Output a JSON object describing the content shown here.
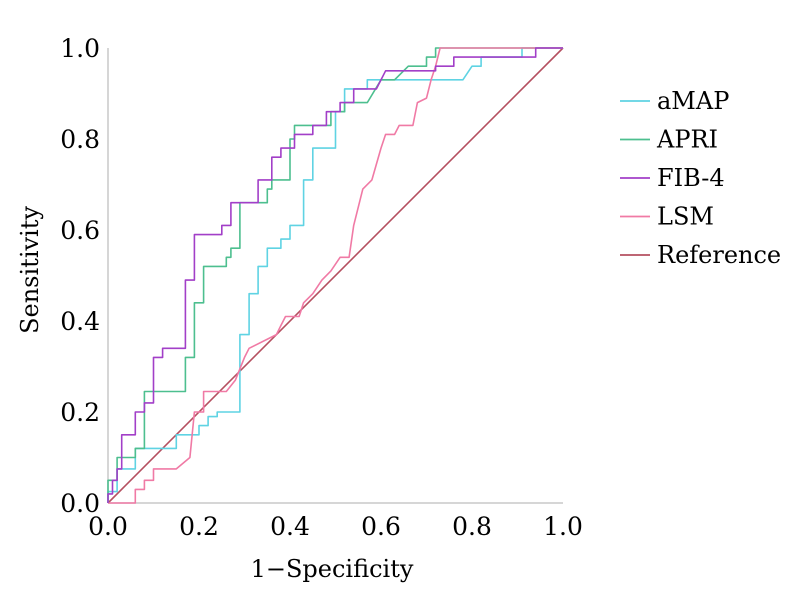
{
  "chart_data": {
    "type": "line",
    "title": "",
    "xlabel": "1−Specificity",
    "ylabel": "Sensitivity",
    "xlim": [
      0,
      1
    ],
    "ylim": [
      0,
      1
    ],
    "xticks": [
      "0.0",
      "0.2",
      "0.4",
      "0.6",
      "0.8",
      "1.0"
    ],
    "yticks": [
      "0.0",
      "0.2",
      "0.4",
      "0.6",
      "0.8",
      "1.0"
    ],
    "grid": false,
    "legend_position": "right",
    "series": [
      {
        "name": "aMAP",
        "color": "#5fd3e3",
        "points": [
          [
            0,
            0
          ],
          [
            0,
            0.025
          ],
          [
            0.02,
            0.025
          ],
          [
            0.02,
            0.075
          ],
          [
            0.06,
            0.075
          ],
          [
            0.06,
            0.12
          ],
          [
            0.15,
            0.12
          ],
          [
            0.15,
            0.15
          ],
          [
            0.2,
            0.15
          ],
          [
            0.2,
            0.17
          ],
          [
            0.22,
            0.17
          ],
          [
            0.22,
            0.19
          ],
          [
            0.24,
            0.19
          ],
          [
            0.24,
            0.2
          ],
          [
            0.29,
            0.2
          ],
          [
            0.29,
            0.37
          ],
          [
            0.31,
            0.37
          ],
          [
            0.31,
            0.46
          ],
          [
            0.33,
            0.46
          ],
          [
            0.33,
            0.52
          ],
          [
            0.35,
            0.52
          ],
          [
            0.35,
            0.56
          ],
          [
            0.38,
            0.56
          ],
          [
            0.38,
            0.58
          ],
          [
            0.4,
            0.58
          ],
          [
            0.4,
            0.61
          ],
          [
            0.43,
            0.61
          ],
          [
            0.43,
            0.71
          ],
          [
            0.45,
            0.71
          ],
          [
            0.45,
            0.78
          ],
          [
            0.5,
            0.78
          ],
          [
            0.5,
            0.86
          ],
          [
            0.52,
            0.86
          ],
          [
            0.52,
            0.91
          ],
          [
            0.57,
            0.91
          ],
          [
            0.57,
            0.93
          ],
          [
            0.63,
            0.93
          ],
          [
            0.78,
            0.93
          ],
          [
            0.8,
            0.96
          ],
          [
            0.82,
            0.96
          ],
          [
            0.82,
            0.98
          ],
          [
            0.91,
            0.98
          ],
          [
            0.91,
            1.0
          ],
          [
            1.0,
            1.0
          ]
        ]
      },
      {
        "name": "APRI",
        "color": "#4dbf8f",
        "points": [
          [
            0,
            0
          ],
          [
            0,
            0.05
          ],
          [
            0.02,
            0.05
          ],
          [
            0.02,
            0.1
          ],
          [
            0.06,
            0.1
          ],
          [
            0.06,
            0.12
          ],
          [
            0.08,
            0.12
          ],
          [
            0.08,
            0.245
          ],
          [
            0.17,
            0.245
          ],
          [
            0.17,
            0.32
          ],
          [
            0.19,
            0.32
          ],
          [
            0.19,
            0.44
          ],
          [
            0.21,
            0.44
          ],
          [
            0.21,
            0.52
          ],
          [
            0.26,
            0.52
          ],
          [
            0.26,
            0.54
          ],
          [
            0.27,
            0.54
          ],
          [
            0.27,
            0.56
          ],
          [
            0.29,
            0.56
          ],
          [
            0.29,
            0.66
          ],
          [
            0.35,
            0.66
          ],
          [
            0.35,
            0.69
          ],
          [
            0.36,
            0.69
          ],
          [
            0.36,
            0.71
          ],
          [
            0.4,
            0.71
          ],
          [
            0.4,
            0.8
          ],
          [
            0.41,
            0.8
          ],
          [
            0.41,
            0.83
          ],
          [
            0.49,
            0.83
          ],
          [
            0.49,
            0.86
          ],
          [
            0.52,
            0.86
          ],
          [
            0.52,
            0.88
          ],
          [
            0.57,
            0.88
          ],
          [
            0.6,
            0.93
          ],
          [
            0.63,
            0.93
          ],
          [
            0.66,
            0.96
          ],
          [
            0.7,
            0.96
          ],
          [
            0.7,
            0.98
          ],
          [
            0.72,
            0.98
          ],
          [
            0.72,
            1.0
          ],
          [
            1.0,
            1.0
          ]
        ]
      },
      {
        "name": "FIB-4",
        "color": "#a23fc8",
        "points": [
          [
            0,
            0
          ],
          [
            0,
            0.02
          ],
          [
            0.01,
            0.02
          ],
          [
            0.01,
            0.05
          ],
          [
            0.02,
            0.05
          ],
          [
            0.02,
            0.075
          ],
          [
            0.03,
            0.075
          ],
          [
            0.03,
            0.15
          ],
          [
            0.06,
            0.15
          ],
          [
            0.06,
            0.2
          ],
          [
            0.08,
            0.2
          ],
          [
            0.08,
            0.22
          ],
          [
            0.1,
            0.22
          ],
          [
            0.1,
            0.32
          ],
          [
            0.12,
            0.32
          ],
          [
            0.12,
            0.34
          ],
          [
            0.17,
            0.34
          ],
          [
            0.17,
            0.49
          ],
          [
            0.19,
            0.49
          ],
          [
            0.19,
            0.59
          ],
          [
            0.25,
            0.59
          ],
          [
            0.25,
            0.61
          ],
          [
            0.27,
            0.61
          ],
          [
            0.27,
            0.66
          ],
          [
            0.33,
            0.66
          ],
          [
            0.33,
            0.71
          ],
          [
            0.36,
            0.71
          ],
          [
            0.36,
            0.76
          ],
          [
            0.38,
            0.76
          ],
          [
            0.38,
            0.78
          ],
          [
            0.41,
            0.78
          ],
          [
            0.41,
            0.81
          ],
          [
            0.45,
            0.81
          ],
          [
            0.45,
            0.83
          ],
          [
            0.48,
            0.83
          ],
          [
            0.48,
            0.86
          ],
          [
            0.51,
            0.86
          ],
          [
            0.51,
            0.88
          ],
          [
            0.54,
            0.88
          ],
          [
            0.54,
            0.91
          ],
          [
            0.59,
            0.91
          ],
          [
            0.61,
            0.95
          ],
          [
            0.72,
            0.95
          ],
          [
            0.72,
            0.96
          ],
          [
            0.76,
            0.96
          ],
          [
            0.76,
            0.98
          ],
          [
            0.94,
            0.98
          ],
          [
            0.94,
            1.0
          ],
          [
            1.0,
            1.0
          ]
        ]
      },
      {
        "name": "LSM",
        "color": "#f07aa5",
        "points": [
          [
            0,
            0
          ],
          [
            0.06,
            0
          ],
          [
            0.06,
            0.03
          ],
          [
            0.08,
            0.03
          ],
          [
            0.08,
            0.05
          ],
          [
            0.1,
            0.05
          ],
          [
            0.1,
            0.075
          ],
          [
            0.15,
            0.075
          ],
          [
            0.18,
            0.1
          ],
          [
            0.19,
            0.2
          ],
          [
            0.21,
            0.2
          ],
          [
            0.21,
            0.245
          ],
          [
            0.26,
            0.245
          ],
          [
            0.28,
            0.27
          ],
          [
            0.3,
            0.32
          ],
          [
            0.31,
            0.34
          ],
          [
            0.37,
            0.37
          ],
          [
            0.38,
            0.39
          ],
          [
            0.39,
            0.41
          ],
          [
            0.42,
            0.41
          ],
          [
            0.43,
            0.44
          ],
          [
            0.45,
            0.46
          ],
          [
            0.47,
            0.49
          ],
          [
            0.49,
            0.51
          ],
          [
            0.51,
            0.54
          ],
          [
            0.53,
            0.54
          ],
          [
            0.54,
            0.61
          ],
          [
            0.56,
            0.69
          ],
          [
            0.58,
            0.71
          ],
          [
            0.6,
            0.78
          ],
          [
            0.61,
            0.81
          ],
          [
            0.63,
            0.81
          ],
          [
            0.64,
            0.83
          ],
          [
            0.67,
            0.83
          ],
          [
            0.68,
            0.88
          ],
          [
            0.7,
            0.89
          ],
          [
            0.71,
            0.93
          ],
          [
            0.72,
            0.96
          ],
          [
            0.73,
            1.0
          ],
          [
            1.0,
            1.0
          ]
        ]
      },
      {
        "name": "Reference",
        "color": "#b55060",
        "points": [
          [
            0,
            0
          ],
          [
            1,
            1
          ]
        ]
      }
    ]
  }
}
